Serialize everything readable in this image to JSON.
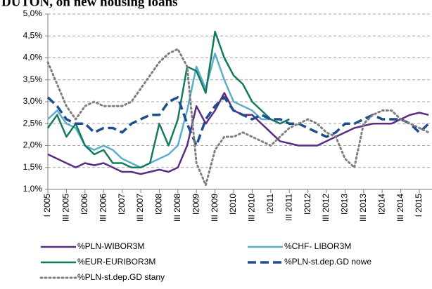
{
  "chart_data": {
    "type": "line",
    "title": "DUTON, on new housing loans",
    "categories": [
      "I 2005",
      null,
      "III 2005",
      null,
      "I2006",
      null,
      "III 2006",
      null,
      "I2007",
      null,
      "III 2007",
      null,
      "I2008",
      null,
      "III 2008",
      null,
      "I2009",
      null,
      "III 2009",
      null,
      "I2010",
      null,
      "III 2010",
      null,
      "I2011",
      null,
      "III 2011",
      null,
      "I2012",
      null,
      "III 2012",
      null,
      "I2013",
      null,
      "III 2013",
      null,
      "I2014",
      null,
      "III 2014",
      null,
      "I 2015",
      null
    ],
    "series": [
      {
        "name": "%PLN-WIBOR3M",
        "color": "#5b2c83",
        "dash": "solid",
        "values": [
          1.8,
          1.7,
          1.6,
          1.5,
          1.6,
          1.55,
          1.6,
          1.5,
          1.4,
          1.4,
          1.35,
          1.4,
          1.45,
          1.4,
          1.5,
          2.0,
          2.9,
          2.5,
          2.8,
          3.2,
          2.8,
          2.7,
          2.7,
          2.5,
          2.3,
          2.1,
          2.05,
          2.0,
          2.0,
          2.0,
          2.1,
          2.2,
          2.3,
          2.4,
          2.45,
          2.5,
          2.5,
          2.5,
          2.6,
          2.7,
          2.75,
          2.7
        ]
      },
      {
        "name": "%CHF- LIBOR3M",
        "color": "#5aaecb",
        "dash": "solid",
        "values": [
          2.6,
          2.8,
          2.5,
          2.4,
          2.0,
          1.9,
          2.0,
          1.9,
          1.7,
          1.6,
          1.5,
          1.6,
          1.7,
          1.8,
          2.0,
          2.8,
          3.8,
          3.3,
          4.1,
          3.5,
          3.0,
          2.9,
          2.8,
          2.6,
          2.6,
          2.5,
          2.6,
          null,
          null,
          null,
          null,
          null,
          null,
          null,
          null,
          null,
          null,
          null,
          null,
          null,
          null,
          null
        ]
      },
      {
        "name": "%EUR-EURIBOR3M",
        "color": "#127a5e",
        "dash": "solid",
        "values": [
          2.4,
          2.7,
          2.2,
          2.5,
          2.0,
          1.8,
          1.9,
          1.6,
          1.6,
          1.5,
          1.5,
          1.6,
          2.5,
          2.0,
          2.6,
          3.8,
          3.7,
          3.2,
          4.6,
          4.0,
          3.6,
          3.4,
          3.0,
          2.8,
          2.6,
          2.5,
          2.6,
          null,
          null,
          null,
          null,
          null,
          null,
          null,
          null,
          null,
          null,
          null,
          null,
          null,
          null,
          null
        ]
      },
      {
        "name": "%PLN-st.dep.GD nowe",
        "color": "#1f4e8c",
        "dash": "dashed",
        "values": [
          3.1,
          2.9,
          2.6,
          2.5,
          2.5,
          2.3,
          2.4,
          2.4,
          2.3,
          2.5,
          2.6,
          2.7,
          2.7,
          3.0,
          3.1,
          2.5,
          2.0,
          2.6,
          2.9,
          3.1,
          2.8,
          2.7,
          2.6,
          2.7,
          2.6,
          2.6,
          2.5,
          2.5,
          2.4,
          2.3,
          2.2,
          2.3,
          2.5,
          2.5,
          2.6,
          2.7,
          2.6,
          2.6,
          2.6,
          2.5,
          2.3,
          2.5
        ]
      },
      {
        "name": "%PLN-st.dep.GD stany",
        "color": "#7f7f7f",
        "dash": "dotted",
        "values": [
          3.9,
          3.4,
          2.9,
          2.6,
          2.9,
          3.0,
          2.9,
          2.9,
          2.9,
          3.0,
          3.3,
          3.6,
          3.9,
          4.1,
          4.2,
          3.8,
          1.6,
          1.1,
          1.9,
          2.2,
          2.2,
          2.3,
          2.2,
          2.1,
          2.0,
          2.2,
          2.4,
          2.5,
          2.6,
          2.5,
          2.3,
          2.2,
          1.7,
          1.5,
          2.5,
          2.7,
          2.8,
          2.8,
          2.6,
          2.5,
          2.4,
          2.3
        ]
      }
    ],
    "ylim": [
      1.0,
      5.0
    ],
    "yticks": [
      {
        "value": 1.0,
        "label": "1,0%"
      },
      {
        "value": 1.5,
        "label": "1,5%"
      },
      {
        "value": 2.0,
        "label": "2,0%"
      },
      {
        "value": 2.5,
        "label": "2,5%"
      },
      {
        "value": 3.0,
        "label": "3,0%"
      },
      {
        "value": 3.5,
        "label": "3,5%"
      },
      {
        "value": 4.0,
        "label": "4,0%"
      },
      {
        "value": 4.5,
        "label": "4,5%"
      },
      {
        "value": 5.0,
        "label": "5,0%"
      }
    ],
    "grid": true
  }
}
